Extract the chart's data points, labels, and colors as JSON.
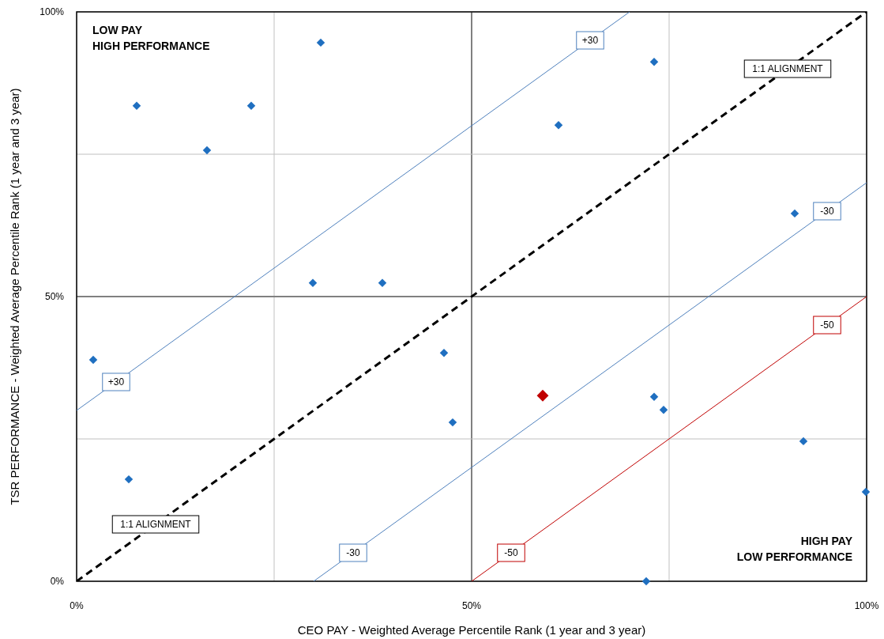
{
  "chart_data": {
    "type": "scatter",
    "xlabel": "CEO PAY - Weighted Average Percentile Rank (1 year and 3 year)",
    "ylabel": "TSR PERFORMANCE - Weighted Average Percentile Rank (1 year and 3 year)",
    "xlim": [
      0,
      100
    ],
    "ylim": [
      0,
      100
    ],
    "xticks": [
      {
        "value": 0,
        "label": "0%"
      },
      {
        "value": 25,
        "label": null
      },
      {
        "value": 50,
        "label": "50%"
      },
      {
        "value": 75,
        "label": null
      },
      {
        "value": 100,
        "label": "100%"
      }
    ],
    "yticks": [
      {
        "value": 0,
        "label": "0%"
      },
      {
        "value": 25,
        "label": null
      },
      {
        "value": 50,
        "label": "50%"
      },
      {
        "value": 75,
        "label": null
      },
      {
        "value": 100,
        "label": "100%"
      }
    ],
    "grid": true,
    "series": [
      {
        "marker": "diamond",
        "color": "#1f6fc0",
        "x": [
          2.1,
          7.6,
          6.6,
          16.5,
          22.1,
          30.9,
          29.9,
          38.7,
          46.5,
          47.6,
          61,
          73.1,
          73.1,
          74.3,
          72.1,
          90.9,
          92,
          99.9
        ],
        "values": [
          38.9,
          83.5,
          17.9,
          75.7,
          83.5,
          94.6,
          52.4,
          52.4,
          40.1,
          27.9,
          80.1,
          91.2,
          32.4,
          30.1,
          0,
          64.6,
          24.6,
          15.7
        ]
      },
      {
        "marker": "diamond",
        "color": "#c00000",
        "x": [
          59
        ],
        "values": [
          32.6
        ]
      },
      {
        "type": "line",
        "color": "#4f81bd",
        "x": [
          0,
          70
        ],
        "values": [
          30,
          100
        ],
        "line_style": "solid",
        "marker": "none"
      },
      {
        "type": "line",
        "color": "#4f81bd",
        "x": [
          30,
          100
        ],
        "values": [
          0,
          70
        ],
        "line_style": "solid",
        "marker": "none"
      },
      {
        "type": "line",
        "color": "#c00000",
        "x": [
          50,
          100
        ],
        "values": [
          0,
          50
        ],
        "line_style": "solid",
        "marker": "none"
      },
      {
        "type": "line",
        "color": "#000000",
        "x": [
          0,
          100
        ],
        "values": [
          0,
          100
        ],
        "line_style": "dashed",
        "marker": "none"
      }
    ],
    "annotations": [
      "LOW PAY\nHIGH PERFORMANCE",
      "HIGH PAY\nLOW PERFORMANCE",
      {
        "text": "+30",
        "x": 65,
        "y": 95
      },
      {
        "text": "+30",
        "x": 5,
        "y": 35
      },
      {
        "text": "-30",
        "x": 95,
        "y": 65
      },
      {
        "text": "-30",
        "x": 35,
        "y": 5
      },
      {
        "text": "-50",
        "x": 95,
        "y": 45
      },
      {
        "text": "-50",
        "x": 55,
        "y": 5
      },
      {
        "text": "1:1 ALIGNMENT",
        "x": 90,
        "y": 90
      },
      {
        "text": "1:1 ALIGNMENT",
        "x": 10,
        "y": 10
      }
    ]
  }
}
